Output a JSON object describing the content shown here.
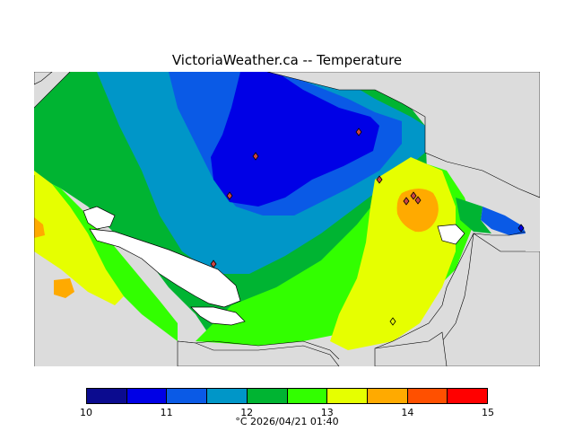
{
  "title": "VictoriaWeather.ca -- Temperature",
  "caption": "°C  2026/04/21 01:40",
  "colorbar": {
    "tick_labels": [
      "10",
      "11",
      "12",
      "13",
      "14",
      "15"
    ],
    "colors": [
      "#0b0b8f",
      "#0000e6",
      "#0a5ae6",
      "#0096c8",
      "#00b432",
      "#32ff00",
      "#e6ff00",
      "#ffaa00",
      "#ff5000",
      "#ff0000"
    ]
  },
  "map": {
    "land_color": "#dcdcdc",
    "water_color": "#ffffff",
    "station_marker": "diamond"
  }
}
